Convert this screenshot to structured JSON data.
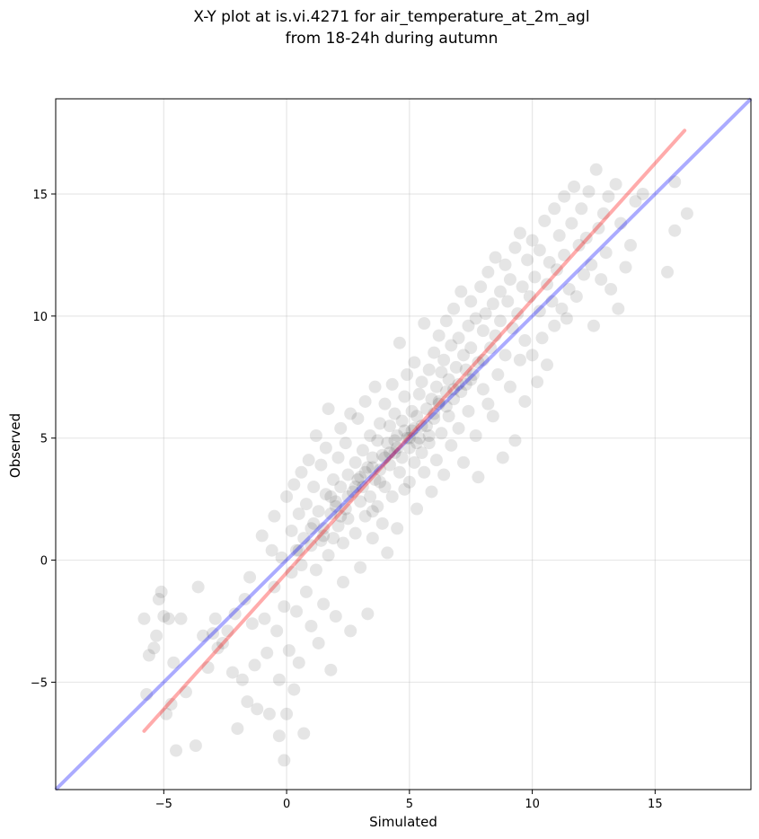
{
  "chart_data": {
    "type": "scatter",
    "title": "X-Y plot at is.vi.4271 for air_temperature_at_2m_agl",
    "subtitle": "from 18-24h during autumn",
    "xlabel": "Simulated",
    "ylabel": "Observed",
    "xlim": [
      -9.4,
      18.9
    ],
    "ylim": [
      -9.4,
      18.9
    ],
    "xticks": [
      -5,
      0,
      5,
      10,
      15
    ],
    "yticks": [
      -5,
      0,
      5,
      10,
      15
    ],
    "xtick_labels": [
      "−5",
      "0",
      "5",
      "10",
      "15"
    ],
    "ytick_labels": [
      "−5",
      "0",
      "5",
      "10",
      "15"
    ],
    "grid": true,
    "point_color": "#000000",
    "point_alpha": 0.1,
    "reference_line": {
      "color": "#0000ff",
      "alpha": 0.33,
      "from": [
        -9.4,
        -9.4
      ],
      "to": [
        18.9,
        18.9
      ]
    },
    "fit_line": {
      "color": "#ff0000",
      "alpha": 0.33,
      "from": [
        -5.8,
        -7.0
      ],
      "to": [
        16.2,
        17.6
      ]
    },
    "series": [
      {
        "points": [
          [
            -5.8,
            -2.4
          ],
          [
            -5.6,
            -3.9
          ],
          [
            -5.7,
            -5.5
          ],
          [
            -5.4,
            -3.6
          ],
          [
            -5.3,
            -3.1
          ],
          [
            -5.2,
            -1.6
          ],
          [
            -5.1,
            -1.3
          ],
          [
            -5.0,
            -2.3
          ],
          [
            -4.8,
            -2.4
          ],
          [
            -4.6,
            -4.2
          ],
          [
            -4.9,
            -6.3
          ],
          [
            -4.7,
            -5.9
          ],
          [
            -4.5,
            -7.8
          ],
          [
            -4.3,
            -2.4
          ],
          [
            -4.1,
            -5.4
          ],
          [
            -3.7,
            -7.6
          ],
          [
            -3.6,
            -1.1
          ],
          [
            -3.4,
            -3.1
          ],
          [
            -3.2,
            -4.4
          ],
          [
            -3.0,
            -3.0
          ],
          [
            -2.8,
            -3.6
          ],
          [
            -2.9,
            -2.4
          ],
          [
            -2.6,
            -3.4
          ],
          [
            -2.4,
            -2.9
          ],
          [
            -2.2,
            -4.6
          ],
          [
            -2.0,
            -6.9
          ],
          [
            -2.1,
            -2.2
          ],
          [
            -1.8,
            -4.9
          ],
          [
            -1.7,
            -1.6
          ],
          [
            -1.6,
            -5.8
          ],
          [
            -1.5,
            -0.7
          ],
          [
            -1.4,
            -2.6
          ],
          [
            -1.3,
            -4.3
          ],
          [
            -1.2,
            -6.1
          ],
          [
            -1.0,
            1.0
          ],
          [
            -0.9,
            -2.4
          ],
          [
            -0.8,
            -3.8
          ],
          [
            -0.7,
            -6.3
          ],
          [
            -0.6,
            0.4
          ],
          [
            -0.5,
            -1.1
          ],
          [
            -0.5,
            1.8
          ],
          [
            -0.4,
            -2.9
          ],
          [
            -0.3,
            -4.9
          ],
          [
            -0.3,
            -7.2
          ],
          [
            -0.2,
            0.1
          ],
          [
            -0.1,
            -1.9
          ],
          [
            -0.1,
            -8.2
          ],
          [
            0.0,
            -6.3
          ],
          [
            0.0,
            2.6
          ],
          [
            0.1,
            -3.7
          ],
          [
            0.2,
            -0.5
          ],
          [
            0.2,
            1.2
          ],
          [
            0.3,
            -5.3
          ],
          [
            0.3,
            3.1
          ],
          [
            0.4,
            0.4
          ],
          [
            0.4,
            -2.1
          ],
          [
            0.5,
            -4.2
          ],
          [
            0.5,
            1.9
          ],
          [
            0.6,
            -0.2
          ],
          [
            0.6,
            3.6
          ],
          [
            0.7,
            0.9
          ],
          [
            0.7,
            -7.1
          ],
          [
            0.8,
            -1.3
          ],
          [
            0.8,
            2.3
          ],
          [
            0.9,
            4.1
          ],
          [
            1.0,
            0.6
          ],
          [
            1.0,
            -2.7
          ],
          [
            1.1,
            1.5
          ],
          [
            1.1,
            3.0
          ],
          [
            1.2,
            -0.4
          ],
          [
            1.2,
            5.1
          ],
          [
            1.3,
            2.0
          ],
          [
            1.3,
            -3.4
          ],
          [
            1.4,
            0.8
          ],
          [
            1.4,
            3.9
          ],
          [
            1.5,
            1.3
          ],
          [
            1.5,
            -1.8
          ],
          [
            1.6,
            2.7
          ],
          [
            1.6,
            4.6
          ],
          [
            1.7,
            0.2
          ],
          [
            1.7,
            6.2
          ],
          [
            1.8,
            1.9
          ],
          [
            1.8,
            -4.5
          ],
          [
            1.9,
            3.3
          ],
          [
            1.9,
            0.9
          ],
          [
            2.0,
            2.4
          ],
          [
            2.0,
            -2.3
          ],
          [
            2.1,
            4.2
          ],
          [
            2.1,
            1.4
          ],
          [
            2.2,
            3.0
          ],
          [
            2.2,
            5.4
          ],
          [
            2.3,
            0.7
          ],
          [
            2.3,
            -0.9
          ],
          [
            2.4,
            2.1
          ],
          [
            2.4,
            4.8
          ],
          [
            2.5,
            3.5
          ],
          [
            2.5,
            1.7
          ],
          [
            2.6,
            6.0
          ],
          [
            2.6,
            -2.9
          ],
          [
            2.7,
            2.8
          ],
          [
            2.8,
            4.0
          ],
          [
            2.8,
            1.1
          ],
          [
            2.9,
            3.3
          ],
          [
            2.9,
            5.8
          ],
          [
            3.0,
            2.4
          ],
          [
            3.0,
            -0.3
          ],
          [
            3.1,
            4.5
          ],
          [
            3.1,
            3.0
          ],
          [
            3.2,
            1.8
          ],
          [
            3.2,
            6.5
          ],
          [
            3.3,
            3.8
          ],
          [
            3.3,
            -2.2
          ],
          [
            3.4,
            2.6
          ],
          [
            3.4,
            5.1
          ],
          [
            3.5,
            4.2
          ],
          [
            3.5,
            0.9
          ],
          [
            3.6,
            3.3
          ],
          [
            3.6,
            7.1
          ],
          [
            3.7,
            4.9
          ],
          [
            3.7,
            2.2
          ],
          [
            3.8,
            3.7
          ],
          [
            3.8,
            5.6
          ],
          [
            3.9,
            1.5
          ],
          [
            3.9,
            4.3
          ],
          [
            4.0,
            6.4
          ],
          [
            4.0,
            3.0
          ],
          [
            4.1,
            4.8
          ],
          [
            4.1,
            0.3
          ],
          [
            4.2,
            5.5
          ],
          [
            4.2,
            3.9
          ],
          [
            4.3,
            7.2
          ],
          [
            4.3,
            2.6
          ],
          [
            4.4,
            4.4
          ],
          [
            4.4,
            6.0
          ],
          [
            4.5,
            5.1
          ],
          [
            4.5,
            1.3
          ],
          [
            4.6,
            3.6
          ],
          [
            4.6,
            8.9
          ],
          [
            4.7,
            5.7
          ],
          [
            4.7,
            4.2
          ],
          [
            4.8,
            6.7
          ],
          [
            4.8,
            2.9
          ],
          [
            4.9,
            5.0
          ],
          [
            4.9,
            7.6
          ],
          [
            5.0,
            4.6
          ],
          [
            5.0,
            3.2
          ],
          [
            5.1,
            6.1
          ],
          [
            5.1,
            5.3
          ],
          [
            5.2,
            8.1
          ],
          [
            5.2,
            4.0
          ],
          [
            5.3,
            5.9
          ],
          [
            5.3,
            2.1
          ],
          [
            5.4,
            6.8
          ],
          [
            5.4,
            5.0
          ],
          [
            5.5,
            7.3
          ],
          [
            5.5,
            4.4
          ],
          [
            5.6,
            9.7
          ],
          [
            5.6,
            3.6
          ],
          [
            5.7,
            6.2
          ],
          [
            5.7,
            5.5
          ],
          [
            5.8,
            7.8
          ],
          [
            5.8,
            4.8
          ],
          [
            5.9,
            6.6
          ],
          [
            5.9,
            2.8
          ],
          [
            6.0,
            8.5
          ],
          [
            6.0,
            5.8
          ],
          [
            6.1,
            7.1
          ],
          [
            6.1,
            4.1
          ],
          [
            6.2,
            9.2
          ],
          [
            6.2,
            6.4
          ],
          [
            6.3,
            5.2
          ],
          [
            6.3,
            7.7
          ],
          [
            6.4,
            8.2
          ],
          [
            6.4,
            3.5
          ],
          [
            6.5,
            6.9
          ],
          [
            6.5,
            9.8
          ],
          [
            6.6,
            5.9
          ],
          [
            6.6,
            7.4
          ],
          [
            6.7,
            8.8
          ],
          [
            6.7,
            4.7
          ],
          [
            6.8,
            10.3
          ],
          [
            6.8,
            6.6
          ],
          [
            6.9,
            7.9
          ],
          [
            7.0,
            5.4
          ],
          [
            7.0,
            9.1
          ],
          [
            7.1,
            6.9
          ],
          [
            7.1,
            11.0
          ],
          [
            7.2,
            8.4
          ],
          [
            7.2,
            4.0
          ],
          [
            7.3,
            7.2
          ],
          [
            7.4,
            9.6
          ],
          [
            7.4,
            6.1
          ],
          [
            7.5,
            8.7
          ],
          [
            7.5,
            10.6
          ],
          [
            7.6,
            7.6
          ],
          [
            7.7,
            5.1
          ],
          [
            7.7,
            9.9
          ],
          [
            7.8,
            8.1
          ],
          [
            7.8,
            3.4
          ],
          [
            7.9,
            11.2
          ],
          [
            8.0,
            7.0
          ],
          [
            8.0,
            9.4
          ],
          [
            8.1,
            10.1
          ],
          [
            8.2,
            6.4
          ],
          [
            8.2,
            11.8
          ],
          [
            8.3,
            8.7
          ],
          [
            8.4,
            10.5
          ],
          [
            8.4,
            5.9
          ],
          [
            8.5,
            9.2
          ],
          [
            8.5,
            12.4
          ],
          [
            8.6,
            7.6
          ],
          [
            8.7,
            11.0
          ],
          [
            8.7,
            9.8
          ],
          [
            8.8,
            4.2
          ],
          [
            8.9,
            8.4
          ],
          [
            8.9,
            12.1
          ],
          [
            9.0,
            10.6
          ],
          [
            9.1,
            7.1
          ],
          [
            9.1,
            11.5
          ],
          [
            9.2,
            9.5
          ],
          [
            9.3,
            4.9
          ],
          [
            9.3,
            12.8
          ],
          [
            9.4,
            10.1
          ],
          [
            9.5,
            8.2
          ],
          [
            9.5,
            13.4
          ],
          [
            9.6,
            11.2
          ],
          [
            9.7,
            6.5
          ],
          [
            9.7,
            9.0
          ],
          [
            9.8,
            12.3
          ],
          [
            9.9,
            10.8
          ],
          [
            10.0,
            8.4
          ],
          [
            10.0,
            13.1
          ],
          [
            10.1,
            11.6
          ],
          [
            10.2,
            7.3
          ],
          [
            10.3,
            10.2
          ],
          [
            10.3,
            12.7
          ],
          [
            10.4,
            9.1
          ],
          [
            10.5,
            13.9
          ],
          [
            10.6,
            11.3
          ],
          [
            10.6,
            8.0
          ],
          [
            10.7,
            12.2
          ],
          [
            10.8,
            10.6
          ],
          [
            10.9,
            14.4
          ],
          [
            10.9,
            9.6
          ],
          [
            11.0,
            11.9
          ],
          [
            11.1,
            13.3
          ],
          [
            11.2,
            10.3
          ],
          [
            11.3,
            14.9
          ],
          [
            11.3,
            12.5
          ],
          [
            11.4,
            9.9
          ],
          [
            11.5,
            11.1
          ],
          [
            11.6,
            13.8
          ],
          [
            11.7,
            15.3
          ],
          [
            11.8,
            10.8
          ],
          [
            11.9,
            12.9
          ],
          [
            12.0,
            14.4
          ],
          [
            12.1,
            11.7
          ],
          [
            12.2,
            13.2
          ],
          [
            12.3,
            15.1
          ],
          [
            12.4,
            12.1
          ],
          [
            12.5,
            9.6
          ],
          [
            12.6,
            16.0
          ],
          [
            12.7,
            13.6
          ],
          [
            12.8,
            11.5
          ],
          [
            12.9,
            14.2
          ],
          [
            13.0,
            12.6
          ],
          [
            13.1,
            14.9
          ],
          [
            13.2,
            11.1
          ],
          [
            13.4,
            15.4
          ],
          [
            13.5,
            10.3
          ],
          [
            13.6,
            13.8
          ],
          [
            13.8,
            12.0
          ],
          [
            14.0,
            12.9
          ],
          [
            14.2,
            14.7
          ],
          [
            14.5,
            15.0
          ],
          [
            15.5,
            11.8
          ],
          [
            15.8,
            15.5
          ],
          [
            15.8,
            13.5
          ],
          [
            16.3,
            14.2
          ],
          [
            3.5,
            2.0
          ],
          [
            2.0,
            2.2
          ],
          [
            2.5,
            2.6
          ],
          [
            3.0,
            3.4
          ],
          [
            3.5,
            3.8
          ],
          [
            4.0,
            4.2
          ],
          [
            4.5,
            4.6
          ],
          [
            5.0,
            5.0
          ],
          [
            5.5,
            5.5
          ],
          [
            6.0,
            6.0
          ],
          [
            6.5,
            6.3
          ],
          [
            1.5,
            1.0
          ],
          [
            1.0,
            1.3
          ],
          [
            0.5,
            0.4
          ],
          [
            2.8,
            3.0
          ],
          [
            4.2,
            4.4
          ],
          [
            5.2,
            5.4
          ],
          [
            6.2,
            6.5
          ],
          [
            7.0,
            7.2
          ],
          [
            7.5,
            7.4
          ],
          [
            8.0,
            8.2
          ],
          [
            4.8,
            5.3
          ],
          [
            5.3,
            4.8
          ],
          [
            5.8,
            5.1
          ],
          [
            4.4,
            4.9
          ],
          [
            3.8,
            3.2
          ],
          [
            3.2,
            3.6
          ],
          [
            2.2,
            1.8
          ],
          [
            1.8,
            2.6
          ],
          [
            6.8,
            7.0
          ],
          [
            7.3,
            7.8
          ]
        ]
      }
    ]
  }
}
